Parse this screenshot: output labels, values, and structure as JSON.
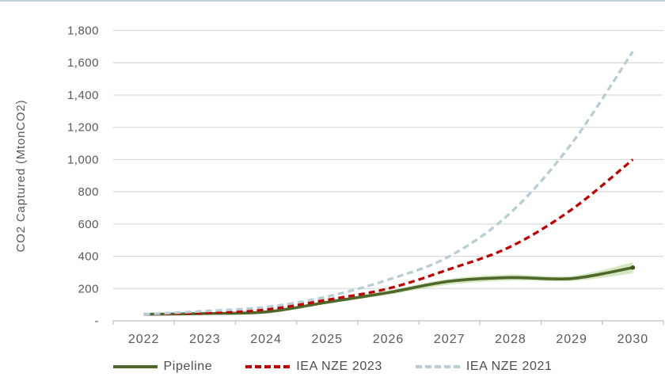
{
  "page": {
    "background": "#ffffff",
    "top_border_color": "#bdd3da"
  },
  "chart_data": {
    "type": "line",
    "title": "",
    "xlabel": "",
    "ylabel": "CO2 Captured (MtonCO2)",
    "categories": [
      "2022",
      "2023",
      "2024",
      "2025",
      "2026",
      "2027",
      "2028",
      "2029",
      "2030"
    ],
    "y_tick_labels": [
      "-",
      "200",
      "400",
      "600",
      "800",
      "1,000",
      "1,200",
      "1,400",
      "1,600",
      "1,800"
    ],
    "ylim": [
      0,
      1800
    ],
    "y_tick_step": 200,
    "grid": "horizontal",
    "gridline_color": "#d9d9d9",
    "axis_line_color": "#bfbfbf",
    "axis_text_color": "#595959",
    "legend_position": "bottom",
    "series": [
      {
        "name": "Pipeline",
        "line_style": "solid",
        "color": "#4d682a",
        "values": [
          40,
          45,
          55,
          115,
          175,
          245,
          268,
          262,
          330
        ],
        "band": {
          "color": "#b5d18c",
          "lower": [
            36,
            42,
            50,
            106,
            162,
            224,
            250,
            247,
            294
          ],
          "upper": [
            44,
            48,
            60,
            124,
            188,
            260,
            286,
            278,
            363
          ]
        }
      },
      {
        "name": "IEA NZE 2023",
        "line_style": "dashed",
        "color": "#c00000",
        "values": [
          40,
          50,
          70,
          130,
          200,
          320,
          460,
          690,
          1000
        ]
      },
      {
        "name": "IEA NZE 2021",
        "line_style": "dashed",
        "color": "#b7cdd4",
        "values": [
          40,
          60,
          85,
          150,
          255,
          400,
          670,
          1100,
          1670
        ]
      }
    ]
  }
}
